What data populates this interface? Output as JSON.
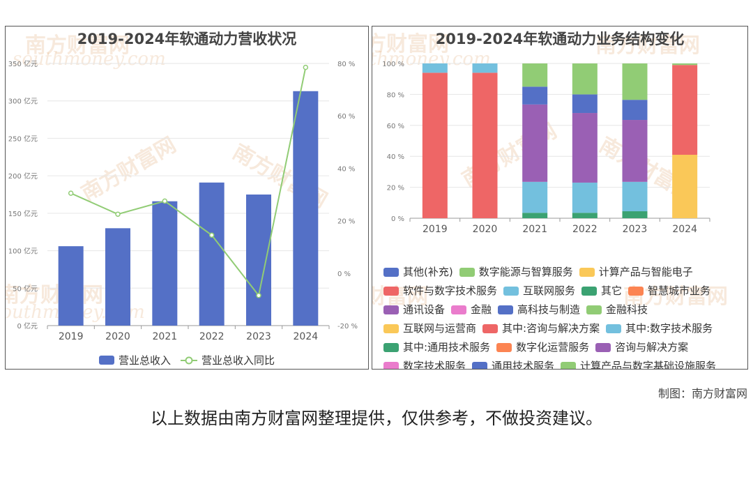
{
  "credit": "制图：南方财富网",
  "disclaimer": "以上数据由南方财富网整理提供，仅供参考，不做投资建议。",
  "watermark": {
    "cn": "南方财富网",
    "en": "southmoney.com"
  },
  "chart_data": [
    {
      "type": "bar",
      "title": "2019-2024年软通动力营收状况",
      "categories": [
        "2019",
        "2020",
        "2021",
        "2022",
        "2023",
        "2024"
      ],
      "series": [
        {
          "name": "营业总收入",
          "type": "bar",
          "axis": "left",
          "color": "#5470c6",
          "values": [
            106,
            130,
            166,
            191,
            175,
            313
          ]
        },
        {
          "name": "营业总收入同比",
          "type": "line",
          "axis": "right",
          "color": "#91cc75",
          "values": [
            30.5,
            22.5,
            27.5,
            14.5,
            -8.5,
            78.5
          ]
        }
      ],
      "yaxis_left": {
        "min": 0,
        "max": 350,
        "ticks": [
          "0 亿元",
          "50 亿元",
          "100 亿元",
          "150 亿元",
          "200 亿元",
          "250 亿元",
          "300 亿元",
          "350 亿元"
        ]
      },
      "yaxis_right": {
        "min": -20,
        "max": 80,
        "ticks": [
          "-20 %",
          "0 %",
          "20 %",
          "40 %",
          "60 %",
          "80 %"
        ]
      },
      "legend": [
        "营业总收入",
        "营业总收入同比"
      ],
      "legend_position": "bottom",
      "grid": true
    },
    {
      "type": "bar",
      "stacked": true,
      "title": "2019-2024年软通动力业务结构变化",
      "categories": [
        "2019",
        "2020",
        "2021",
        "2022",
        "2023",
        "2024"
      ],
      "ylim": [
        0,
        100
      ],
      "yticks": [
        "0 %",
        "20 %",
        "40 %",
        "60 %",
        "80 %",
        "100 %"
      ],
      "series": [
        {
          "name": "其它",
          "color": "#3ba272",
          "values": [
            0,
            0,
            3.5,
            3.5,
            4.5,
            0
          ]
        },
        {
          "name": "互联网服务",
          "color": "#73c0de",
          "values": [
            0,
            0,
            20,
            19.5,
            19,
            0
          ]
        },
        {
          "name": "通讯设备",
          "color": "#9a60b4",
          "values": [
            0,
            0,
            50,
            45,
            40,
            0
          ]
        },
        {
          "name": "高科技与制造",
          "color": "#5470c6",
          "values": [
            0,
            0,
            11.5,
            12,
            13,
            0
          ]
        },
        {
          "name": "金融科技",
          "color": "#91cc75",
          "values": [
            0,
            0,
            15,
            20,
            23.5,
            0
          ]
        },
        {
          "name": "计算产品与智能电子",
          "color": "#fac858",
          "values": [
            0,
            0,
            0,
            0,
            0,
            41
          ]
        },
        {
          "name": "软件与数字技术服务",
          "color": "#ee6666",
          "values": [
            94,
            94,
            0,
            0,
            0,
            58
          ]
        },
        {
          "name": "其中:数字技术服务",
          "color": "#73c0de",
          "values": [
            6,
            6,
            0,
            0,
            0,
            0
          ]
        },
        {
          "name": "数字能源与智算服务",
          "color": "#91cc75",
          "values": [
            0,
            0,
            0,
            0,
            0,
            1
          ]
        }
      ],
      "legend": [
        {
          "name": "其他(补充)",
          "color": "#5470c6"
        },
        {
          "name": "数字能源与智算服务",
          "color": "#91cc75"
        },
        {
          "name": "计算产品与智能电子",
          "color": "#fac858"
        },
        {
          "name": "软件与数字技术服务",
          "color": "#ee6666"
        },
        {
          "name": "互联网服务",
          "color": "#73c0de"
        },
        {
          "name": "其它",
          "color": "#3ba272"
        },
        {
          "name": "智慧城市业务",
          "color": "#fc8452"
        },
        {
          "name": "通讯设备",
          "color": "#9a60b4"
        },
        {
          "name": "金融",
          "color": "#ea7ccc"
        },
        {
          "name": "高科技与制造",
          "color": "#5470c6"
        },
        {
          "name": "金融科技",
          "color": "#91cc75"
        },
        {
          "name": "互联网与运营商",
          "color": "#fac858"
        },
        {
          "name": "其中:咨询与解决方案",
          "color": "#ee6666"
        },
        {
          "name": "其中:数字技术服务",
          "color": "#73c0de"
        },
        {
          "name": "其中:通用技术服务",
          "color": "#3ba272"
        },
        {
          "name": "数字化运营服务",
          "color": "#fc8452"
        },
        {
          "name": "咨询与解决方案",
          "color": "#9a60b4"
        },
        {
          "name": "数字技术服务",
          "color": "#ea7ccc"
        },
        {
          "name": "通用技术服务",
          "color": "#5470c6"
        },
        {
          "name": "计算产品与数字基础设施服务",
          "color": "#91cc75"
        }
      ],
      "legend_position": "bottom",
      "grid": true
    }
  ]
}
